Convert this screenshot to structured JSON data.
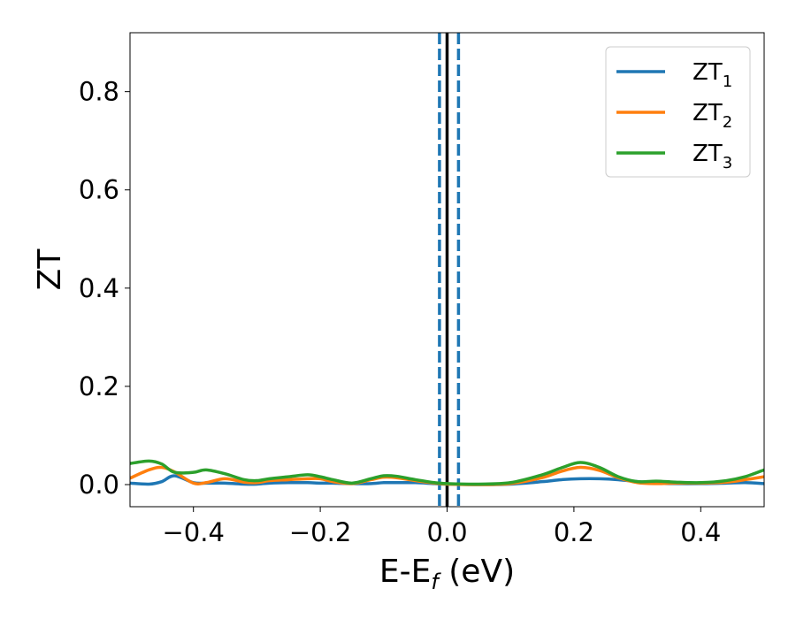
{
  "chart_data": {
    "type": "line",
    "xlabel_main": "E-E",
    "xlabel_sub": "f",
    "xlabel_unit": " (eV)",
    "ylabel": "ZT",
    "xlim": [
      -0.5,
      0.5
    ],
    "ylim": [
      -0.045,
      0.92
    ],
    "xticks": [
      -0.4,
      -0.2,
      0.0,
      0.2,
      0.4
    ],
    "xtick_labels": [
      "−0.4",
      "−0.2",
      "0.0",
      "0.2",
      "0.4"
    ],
    "yticks": [
      0.0,
      0.2,
      0.4,
      0.6,
      0.8
    ],
    "ytick_labels": [
      "0.0",
      "0.2",
      "0.4",
      "0.6",
      "0.8"
    ],
    "grid": false,
    "legend_position": "top-right",
    "vlines": [
      {
        "x": 0.0,
        "color": "#000000",
        "style": "solid"
      },
      {
        "x": -0.012,
        "color": "#1f77b4",
        "style": "dashed"
      },
      {
        "x": 0.018,
        "color": "#1f77b4",
        "style": "dashed"
      }
    ],
    "x": [
      -0.5,
      -0.47,
      -0.45,
      -0.43,
      -0.4,
      -0.38,
      -0.35,
      -0.32,
      -0.3,
      -0.28,
      -0.25,
      -0.22,
      -0.2,
      -0.18,
      -0.15,
      -0.12,
      -0.1,
      -0.08,
      -0.05,
      -0.02,
      0.0,
      0.05,
      0.1,
      0.15,
      0.18,
      0.21,
      0.24,
      0.27,
      0.3,
      0.33,
      0.36,
      0.4,
      0.44,
      0.47,
      0.5
    ],
    "series": [
      {
        "name": "ZT",
        "name_sub": "1",
        "color": "#1f77b4",
        "values": [
          0.003,
          0.001,
          0.006,
          0.018,
          0.004,
          0.003,
          0.003,
          0.001,
          0.001,
          0.003,
          0.004,
          0.004,
          0.003,
          0.003,
          0.002,
          0.002,
          0.004,
          0.004,
          0.004,
          0.002,
          0.001,
          0.0,
          0.001,
          0.006,
          0.01,
          0.012,
          0.012,
          0.01,
          0.006,
          0.003,
          0.002,
          0.002,
          0.003,
          0.004,
          0.002
        ]
      },
      {
        "name": "ZT",
        "name_sub": "2",
        "color": "#ff7f0e",
        "values": [
          0.013,
          0.03,
          0.035,
          0.026,
          0.003,
          0.004,
          0.012,
          0.005,
          0.004,
          0.008,
          0.01,
          0.012,
          0.012,
          0.006,
          0.002,
          0.01,
          0.015,
          0.014,
          0.008,
          0.003,
          0.001,
          0.0,
          0.002,
          0.014,
          0.027,
          0.035,
          0.029,
          0.014,
          0.004,
          0.002,
          0.003,
          0.003,
          0.005,
          0.01,
          0.016
        ]
      },
      {
        "name": "ZT",
        "name_sub": "3",
        "color": "#2ca02c",
        "values": [
          0.043,
          0.048,
          0.042,
          0.025,
          0.025,
          0.03,
          0.022,
          0.01,
          0.008,
          0.012,
          0.016,
          0.02,
          0.016,
          0.01,
          0.003,
          0.012,
          0.018,
          0.017,
          0.01,
          0.004,
          0.002,
          0.001,
          0.004,
          0.02,
          0.034,
          0.045,
          0.035,
          0.016,
          0.006,
          0.007,
          0.005,
          0.004,
          0.008,
          0.016,
          0.03
        ]
      }
    ]
  }
}
